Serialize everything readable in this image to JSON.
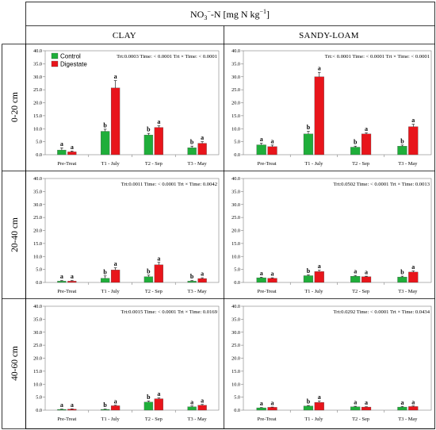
{
  "title": {
    "main": "NO",
    "sub": "3",
    "sup": "−",
    "rest": "-N [mg N kg",
    "sup2": "−1",
    "close": "]"
  },
  "soils": [
    "CLAY",
    "SANDY-LOAM"
  ],
  "depths": [
    "0-20 cm",
    "20-40 cm",
    "40-60 cm"
  ],
  "legend": {
    "control": "Control",
    "digestate": "Digestate"
  },
  "colors": {
    "control": "#1fae3a",
    "digestate": "#e8151b"
  },
  "chart_data": [
    {
      "type": "bar",
      "soil": "CLAY",
      "depth": "0-20 cm",
      "stats": "Trt:0.0003  Time: < 0.0001  Trt × Time: < 0.0001",
      "categories": [
        "Pre-Treat",
        "T1 - July",
        "T2 - Sep",
        "T3 - May"
      ],
      "series": [
        {
          "name": "Control",
          "values": [
            1.8,
            9.0,
            7.6,
            2.7
          ],
          "errors": [
            0.8,
            0.8,
            0.6,
            0.6
          ],
          "letters": [
            "a",
            "b",
            "b",
            "b"
          ]
        },
        {
          "name": "Digestate",
          "values": [
            1.1,
            25.7,
            10.5,
            4.4
          ],
          "errors": [
            0.3,
            2.8,
            0.6,
            0.6
          ],
          "letters": [
            "a",
            "a",
            "a",
            "a"
          ]
        }
      ],
      "ylim": [
        0,
        40
      ],
      "yticks": [
        "0.0",
        "5.0",
        "10.0",
        "15.0",
        "20.0",
        "25.0",
        "30.0",
        "35.0",
        "40.0"
      ]
    },
    {
      "type": "bar",
      "soil": "SANDY-LOAM",
      "depth": "0-20 cm",
      "stats": "Trt:< 0.0001  Time: < 0.0001  Trt × Time: < 0.0001",
      "categories": [
        "Pre-Treat",
        "T1 - July",
        "T2 - Sep",
        "T3 - May"
      ],
      "series": [
        {
          "name": "Control",
          "values": [
            3.8,
            8.0,
            2.9,
            3.3
          ],
          "errors": [
            0.6,
            1.0,
            0.4,
            0.4
          ],
          "letters": [
            "a",
            "b",
            "b",
            "b"
          ]
        },
        {
          "name": "Digestate",
          "values": [
            3.1,
            30.0,
            8.0,
            10.8
          ],
          "errors": [
            0.6,
            1.7,
            0.4,
            0.9
          ],
          "letters": [
            "a",
            "a",
            "a",
            "a"
          ]
        }
      ],
      "ylim": [
        0,
        40
      ],
      "yticks": [
        "0.0",
        "5.0",
        "10.0",
        "15.0",
        "20.0",
        "25.0",
        "30.0",
        "35.0",
        "40.0"
      ]
    },
    {
      "type": "bar",
      "soil": "CLAY",
      "depth": "20-40 cm",
      "stats": "Trt:0.0011  Time: < 0.0001  Trt × Time: 0.0042",
      "categories": [
        "Pre-Treat",
        "T1 - July",
        "T2 - Sep",
        "T3 - May"
      ],
      "series": [
        {
          "name": "Control",
          "values": [
            0.5,
            1.6,
            2.2,
            0.5
          ],
          "errors": [
            0.2,
            0.9,
            0.6,
            0.2
          ],
          "letters": [
            "a",
            "b",
            "b",
            "b"
          ]
        },
        {
          "name": "Digestate",
          "values": [
            0.5,
            4.8,
            6.8,
            1.5
          ],
          "errors": [
            0.2,
            0.8,
            0.9,
            0.3
          ],
          "letters": [
            "a",
            "a",
            "a",
            "a"
          ]
        }
      ],
      "ylim": [
        0,
        40
      ],
      "yticks": [
        "0.0",
        "5.0",
        "10.0",
        "15.0",
        "20.0",
        "25.0",
        "30.0",
        "35.0",
        "40.0"
      ]
    },
    {
      "type": "bar",
      "soil": "SANDY-LOAM",
      "depth": "20-40 cm",
      "stats": "Trt:0.0502  Time: < 0.0001  Trt × Time: 0.0013",
      "categories": [
        "Pre-Treat",
        "T1 - July",
        "T2 - Sep",
        "T3 - May"
      ],
      "series": [
        {
          "name": "Control",
          "values": [
            1.8,
            2.6,
            2.4,
            2.1
          ],
          "errors": [
            0.2,
            0.3,
            0.3,
            0.3
          ],
          "letters": [
            "a",
            "b",
            "a",
            "b"
          ]
        },
        {
          "name": "Digestate",
          "values": [
            1.6,
            4.2,
            2.2,
            4.0
          ],
          "errors": [
            0.2,
            0.5,
            0.2,
            0.4
          ],
          "letters": [
            "a",
            "a",
            "a",
            "a"
          ]
        }
      ],
      "ylim": [
        0,
        40
      ],
      "yticks": [
        "0.0",
        "5.0",
        "10.0",
        "15.0",
        "20.0",
        "25.0",
        "30.0",
        "35.0",
        "40.0"
      ]
    },
    {
      "type": "bar",
      "soil": "CLAY",
      "depth": "40-60 cm",
      "stats": "Trt:0.0015  Time: < 0.0001  Trt × Time: 0.0169",
      "categories": [
        "Pre-Treat",
        "T1 - July",
        "T2 - Sep",
        "T3 - May"
      ],
      "series": [
        {
          "name": "Control",
          "values": [
            0.3,
            0.3,
            3.1,
            1.3
          ],
          "errors": [
            0.1,
            0.1,
            0.4,
            0.3
          ],
          "letters": [
            "a",
            "b",
            "b",
            "a"
          ]
        },
        {
          "name": "Digestate",
          "values": [
            0.4,
            1.7,
            4.4,
            1.9
          ],
          "errors": [
            0.1,
            0.2,
            0.3,
            0.3
          ],
          "letters": [
            "a",
            "a",
            "a",
            "a"
          ]
        }
      ],
      "ylim": [
        0,
        40
      ],
      "yticks": [
        "0.0",
        "5.0",
        "10.0",
        "15.0",
        "20.0",
        "25.0",
        "30.0",
        "35.0",
        "40.0"
      ]
    },
    {
      "type": "bar",
      "soil": "SANDY-LOAM",
      "depth": "40-60 cm",
      "stats": "Trt:0.0292  Time: < 0.0001  Trt × Time: 0.0434",
      "categories": [
        "Pre-Treat",
        "T1 - July",
        "T2 - Sep",
        "T3 - May"
      ],
      "series": [
        {
          "name": "Control",
          "values": [
            0.9,
            1.6,
            1.3,
            1.2
          ],
          "errors": [
            0.1,
            0.2,
            0.2,
            0.2
          ],
          "letters": [
            "a",
            "b",
            "a",
            "a"
          ]
        },
        {
          "name": "Digestate",
          "values": [
            1.1,
            3.0,
            1.2,
            1.4
          ],
          "errors": [
            0.1,
            0.5,
            0.1,
            0.2
          ],
          "letters": [
            "a",
            "a",
            "a",
            "a"
          ]
        }
      ],
      "ylim": [
        0,
        40
      ],
      "yticks": [
        "0.0",
        "5.0",
        "10.0",
        "15.0",
        "20.0",
        "25.0",
        "30.0",
        "35.0",
        "40.0"
      ]
    }
  ]
}
